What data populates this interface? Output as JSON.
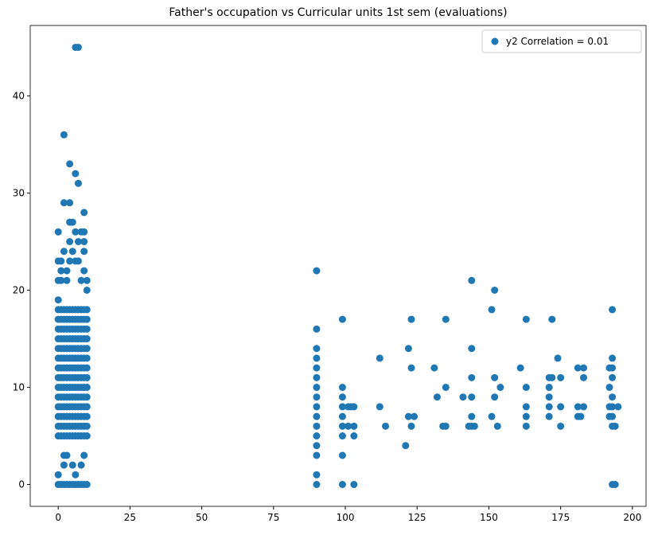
{
  "chart_data": {
    "type": "scatter",
    "title": "Father's occupation vs Curricular units 1st sem (evaluations)",
    "xlim": [
      -9.75,
      204.75
    ],
    "ylim": [
      -2.25,
      47.25
    ],
    "xticks": [
      0,
      25,
      50,
      75,
      100,
      125,
      150,
      175,
      200
    ],
    "yticks": [
      0,
      10,
      20,
      30,
      40
    ],
    "legend": "upper right",
    "series": [
      {
        "name": "y2 Correlation = 0.01",
        "color": "#1f77b4",
        "x": [
          0,
          1,
          2,
          3,
          4,
          5,
          6,
          7,
          8,
          9,
          10,
          0,
          1,
          2,
          3,
          4,
          5,
          6,
          7,
          8,
          9,
          10,
          0,
          1,
          2,
          3,
          4,
          5,
          6,
          7,
          8,
          9,
          10,
          0,
          1,
          2,
          3,
          4,
          5,
          6,
          7,
          8,
          9,
          10,
          0,
          1,
          2,
          3,
          4,
          5,
          6,
          7,
          8,
          9,
          10,
          0,
          1,
          2,
          3,
          4,
          5,
          6,
          7,
          8,
          9,
          10,
          0,
          1,
          2,
          3,
          4,
          5,
          6,
          7,
          8,
          9,
          10,
          0,
          1,
          2,
          3,
          4,
          5,
          6,
          7,
          8,
          9,
          10,
          0,
          1,
          2,
          3,
          4,
          5,
          6,
          7,
          8,
          9,
          10,
          0,
          1,
          2,
          3,
          4,
          5,
          6,
          7,
          8,
          9,
          10,
          0,
          1,
          2,
          3,
          4,
          5,
          6,
          7,
          8,
          9,
          10,
          0,
          1,
          2,
          3,
          4,
          5,
          6,
          7,
          8,
          9,
          10,
          0,
          1,
          2,
          3,
          4,
          5,
          6,
          7,
          8,
          9,
          10,
          0,
          1,
          2,
          3,
          4,
          5,
          6,
          7,
          8,
          9,
          10,
          0,
          0,
          0,
          0,
          0,
          0,
          1,
          1,
          1,
          1,
          2,
          2,
          2,
          2,
          2,
          2,
          3,
          3,
          3,
          3,
          4,
          4,
          4,
          4,
          4,
          4,
          5,
          5,
          5,
          5,
          6,
          6,
          6,
          6,
          6,
          6,
          7,
          7,
          7,
          7,
          7,
          8,
          8,
          8,
          8,
          9,
          9,
          9,
          9,
          9,
          9,
          9,
          10,
          10,
          10,
          90,
          90,
          90,
          90,
          90,
          90,
          90,
          90,
          90,
          90,
          90,
          90,
          90,
          90,
          90,
          90,
          99,
          99,
          99,
          99,
          99,
          99,
          99,
          99,
          99,
          101,
          101,
          102,
          103,
          103,
          103,
          103,
          112,
          112,
          114,
          121,
          122,
          122,
          123,
          123,
          123,
          124,
          131,
          132,
          134,
          135,
          135,
          135,
          141,
          143,
          144,
          144,
          144,
          144,
          144,
          144,
          145,
          151,
          151,
          152,
          152,
          152,
          153,
          154,
          161,
          163,
          163,
          163,
          163,
          163,
          171,
          171,
          171,
          171,
          171,
          172,
          172,
          174,
          175,
          175,
          175,
          181,
          181,
          181,
          182,
          183,
          183,
          183,
          192,
          192,
          192,
          192,
          193,
          193,
          193,
          193,
          193,
          193,
          193,
          193,
          193,
          194,
          194,
          195
        ],
        "y": [
          5,
          5,
          5,
          5,
          5,
          5,
          5,
          5,
          5,
          5,
          5,
          6,
          6,
          6,
          6,
          6,
          6,
          6,
          6,
          6,
          6,
          6,
          7,
          7,
          7,
          7,
          7,
          7,
          7,
          7,
          7,
          7,
          7,
          8,
          8,
          8,
          8,
          8,
          8,
          8,
          8,
          8,
          8,
          8,
          9,
          9,
          9,
          9,
          9,
          9,
          9,
          9,
          9,
          9,
          9,
          10,
          10,
          10,
          10,
          10,
          10,
          10,
          10,
          10,
          10,
          10,
          11,
          11,
          11,
          11,
          11,
          11,
          11,
          11,
          11,
          11,
          11,
          12,
          12,
          12,
          12,
          12,
          12,
          12,
          12,
          12,
          12,
          12,
          13,
          13,
          13,
          13,
          13,
          13,
          13,
          13,
          13,
          13,
          13,
          14,
          14,
          14,
          14,
          14,
          14,
          14,
          14,
          14,
          14,
          14,
          15,
          15,
          15,
          15,
          15,
          15,
          15,
          15,
          15,
          15,
          15,
          16,
          16,
          16,
          16,
          16,
          16,
          16,
          16,
          16,
          16,
          16,
          17,
          17,
          17,
          17,
          17,
          17,
          17,
          17,
          17,
          17,
          17,
          18,
          18,
          18,
          18,
          18,
          18,
          18,
          18,
          18,
          18,
          18,
          0,
          1,
          26,
          23,
          21,
          19,
          22,
          23,
          0,
          21,
          36,
          29,
          24,
          2,
          3,
          0,
          21,
          22,
          3,
          0,
          33,
          29,
          27,
          25,
          23,
          0,
          27,
          24,
          2,
          0,
          32,
          45,
          26,
          23,
          1,
          0,
          31,
          45,
          25,
          23,
          0,
          26,
          21,
          2,
          0,
          28,
          26,
          25,
          24,
          22,
          3,
          0,
          21,
          20,
          0,
          0,
          1,
          3,
          4,
          5,
          6,
          7,
          8,
          9,
          10,
          11,
          12,
          13,
          14,
          16,
          22,
          0,
          3,
          5,
          6,
          7,
          8,
          9,
          10,
          17,
          6,
          8,
          8,
          6,
          8,
          0,
          5,
          13,
          8,
          6,
          4,
          14,
          7,
          17,
          12,
          6,
          7,
          12,
          9,
          6,
          6,
          17,
          10,
          9,
          6,
          21,
          14,
          11,
          9,
          7,
          6,
          6,
          18,
          7,
          20,
          11,
          9,
          6,
          10,
          12,
          17,
          10,
          8,
          7,
          6,
          11,
          10,
          9,
          8,
          7,
          17,
          11,
          13,
          11,
          8,
          6,
          12,
          8,
          7,
          7,
          12,
          11,
          8,
          12,
          10,
          8,
          7,
          18,
          13,
          12,
          11,
          9,
          8,
          7,
          6,
          0,
          0,
          6,
          8
        ]
      }
    ]
  }
}
